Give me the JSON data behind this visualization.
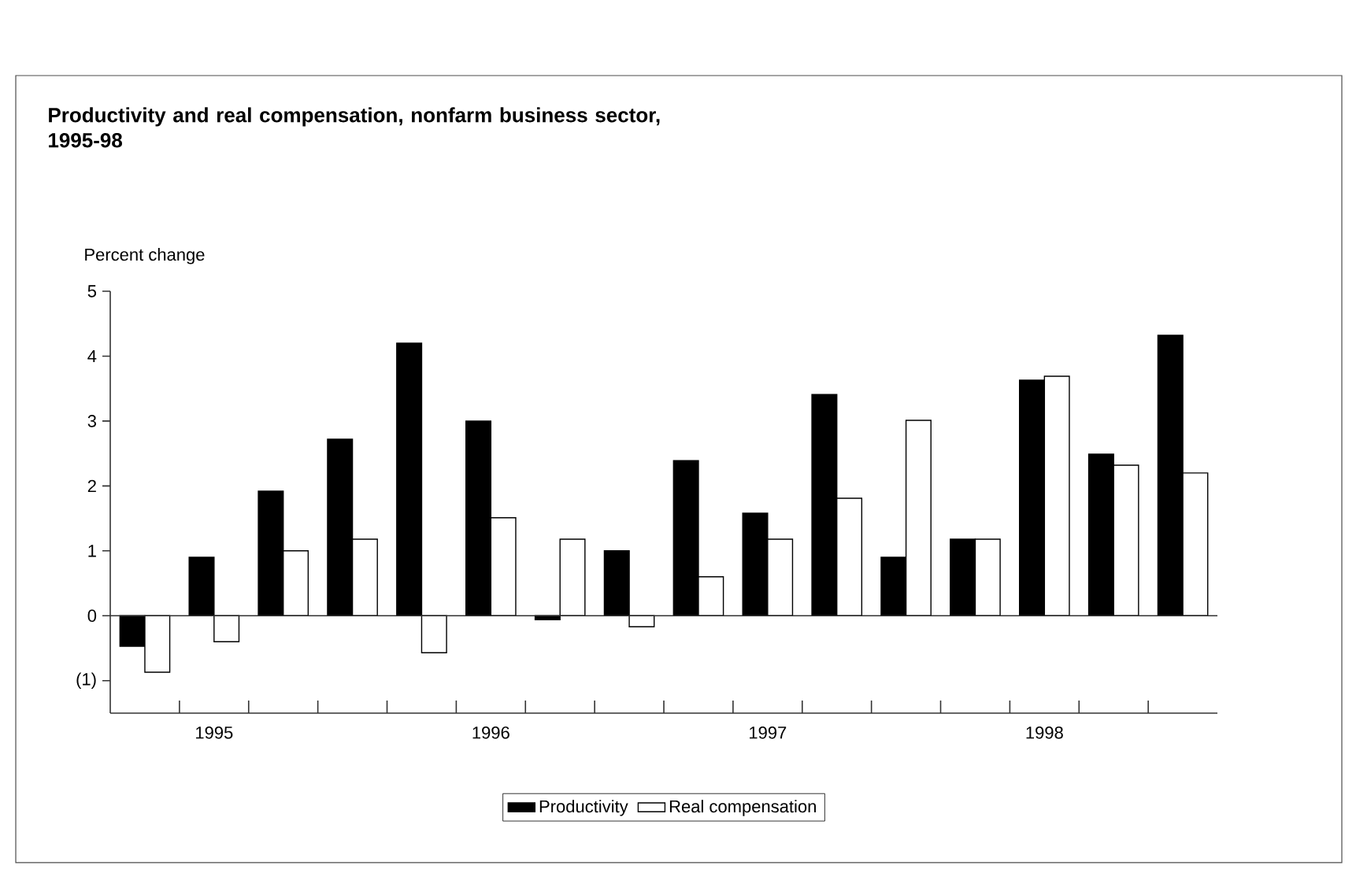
{
  "chart_data": {
    "type": "bar",
    "title": "Productivity and real compensation, nonfarm business sector, 1995-98",
    "ylabel": "Percent change",
    "categories": [
      null,
      "1995",
      null,
      null,
      null,
      "1996",
      null,
      null,
      null,
      "1997",
      null,
      null,
      null,
      "1998",
      null,
      null
    ],
    "series": [
      {
        "name": "Productivity",
        "color": "#000000",
        "values": [
          -0.47,
          0.9,
          1.92,
          2.72,
          4.2,
          3.0,
          -0.06,
          1.0,
          2.39,
          1.58,
          3.41,
          0.9,
          1.18,
          3.63,
          2.49,
          4.32
        ]
      },
      {
        "name": "Real compensation",
        "color": "#ffffff",
        "values": [
          -0.87,
          -0.4,
          1.0,
          1.18,
          -0.57,
          1.51,
          1.18,
          -0.17,
          0.6,
          1.18,
          1.81,
          3.01,
          1.18,
          3.69,
          2.32,
          2.2
        ]
      }
    ],
    "ylim": [
      -1.5,
      5
    ],
    "yticks": [
      {
        "value": -1,
        "label": "(1)"
      },
      0,
      1,
      2,
      3,
      4,
      5
    ],
    "grid": false,
    "ref_lines": [
      {
        "axis": "y",
        "value": 0
      }
    ],
    "legend": "bottom"
  }
}
